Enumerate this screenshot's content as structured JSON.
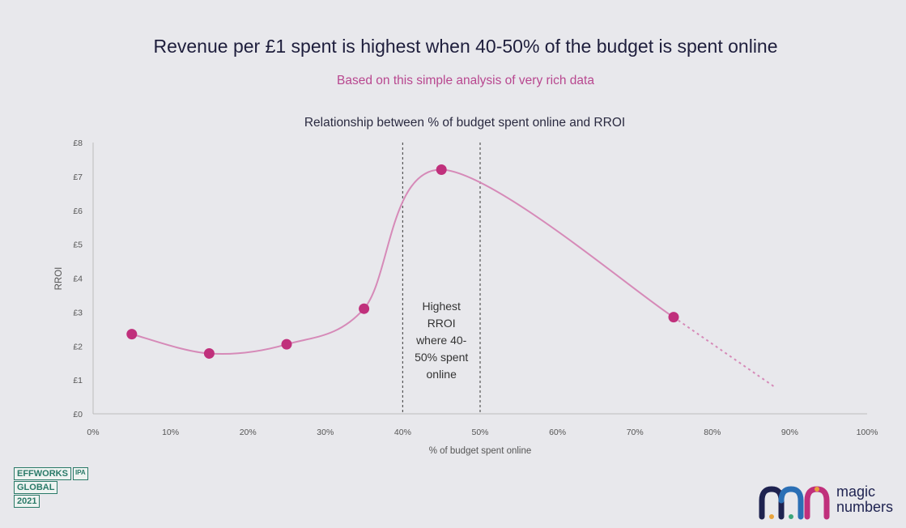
{
  "headline": "Revenue per £1 spent is highest when 40-50% of the budget is spent online",
  "subheadline": "Based on this simple analysis of very rich data",
  "chart_data": {
    "type": "line",
    "title": "Relationship between % of budget spent online and RROI",
    "xlabel": "% of budget  spent online",
    "ylabel": "RROI",
    "xlim": [
      0,
      100
    ],
    "ylim": [
      0,
      8
    ],
    "x_ticks": [
      0,
      10,
      20,
      30,
      40,
      50,
      60,
      70,
      80,
      90,
      100
    ],
    "x_tick_labels": [
      "0%",
      "10%",
      "20%",
      "30%",
      "40%",
      "50%",
      "60%",
      "70%",
      "80%",
      "90%",
      "100%"
    ],
    "y_ticks": [
      0,
      1,
      2,
      3,
      4,
      5,
      6,
      7,
      8
    ],
    "y_tick_labels": [
      "£0",
      "£1",
      "£2",
      "£3",
      "£4",
      "£5",
      "£6",
      "£7",
      "£8"
    ],
    "series": [
      {
        "name": "RROI",
        "points": [
          {
            "x": 5,
            "y": 2.35
          },
          {
            "x": 15,
            "y": 1.78
          },
          {
            "x": 25,
            "y": 2.05
          },
          {
            "x": 35,
            "y": 3.1
          },
          {
            "x": 45,
            "y": 7.2
          },
          {
            "x": 75,
            "y": 2.85
          }
        ],
        "extrapolation_end": {
          "x": 88,
          "y": 0.8
        }
      }
    ],
    "highlight_range": [
      40,
      50
    ],
    "annotation": [
      "Highest",
      "RROI",
      "where 40-",
      "50% spent",
      "online"
    ],
    "colors": {
      "line": "#d68ab8",
      "marker": "#c0307c",
      "axis": "#bbbbbb",
      "text": "#555555",
      "guide": "#555555"
    }
  },
  "logos": {
    "effworks": [
      "EFFWORKS",
      "IPA",
      "GLOBAL",
      "2021"
    ],
    "magic_numbers": [
      "magic",
      "numbers"
    ]
  }
}
